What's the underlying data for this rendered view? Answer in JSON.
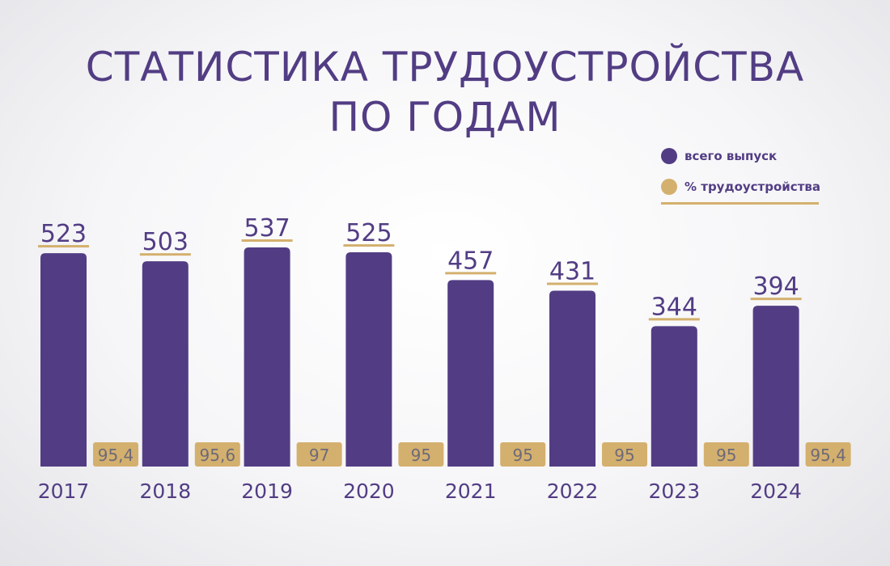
{
  "page": {
    "title_line1": "СТАТИСТИКА ТРУДОУСТРОЙСТВА",
    "title_line2": "ПО ГОДАМ"
  },
  "legend": {
    "items": [
      {
        "label": "всего выпуск",
        "color": "#523d84"
      },
      {
        "label": "% трудоустройства",
        "color": "#d4b06e"
      }
    ]
  },
  "colors": {
    "primary": "#523d84",
    "accent": "#d4b06e",
    "pct_text": "#6e6a78"
  },
  "chart_data": {
    "type": "bar",
    "title": "СТАТИСТИКА ТРУДОУСТРОЙСТВА ПО ГОДАМ",
    "categories": [
      "2017",
      "2018",
      "2019",
      "2020",
      "2021",
      "2022",
      "2023",
      "2024"
    ],
    "series": [
      {
        "name": "всего выпуск",
        "values": [
          523,
          503,
          537,
          525,
          457,
          431,
          344,
          394
        ]
      },
      {
        "name": "% трудоустройства",
        "values": [
          95.4,
          95.6,
          97,
          95,
          95,
          95,
          95,
          95.4
        ],
        "labels": [
          "95,4",
          "95,6",
          "97",
          "95",
          "95",
          "95",
          "95",
          "95,4"
        ]
      }
    ],
    "grid": false,
    "legend": "top-right"
  }
}
